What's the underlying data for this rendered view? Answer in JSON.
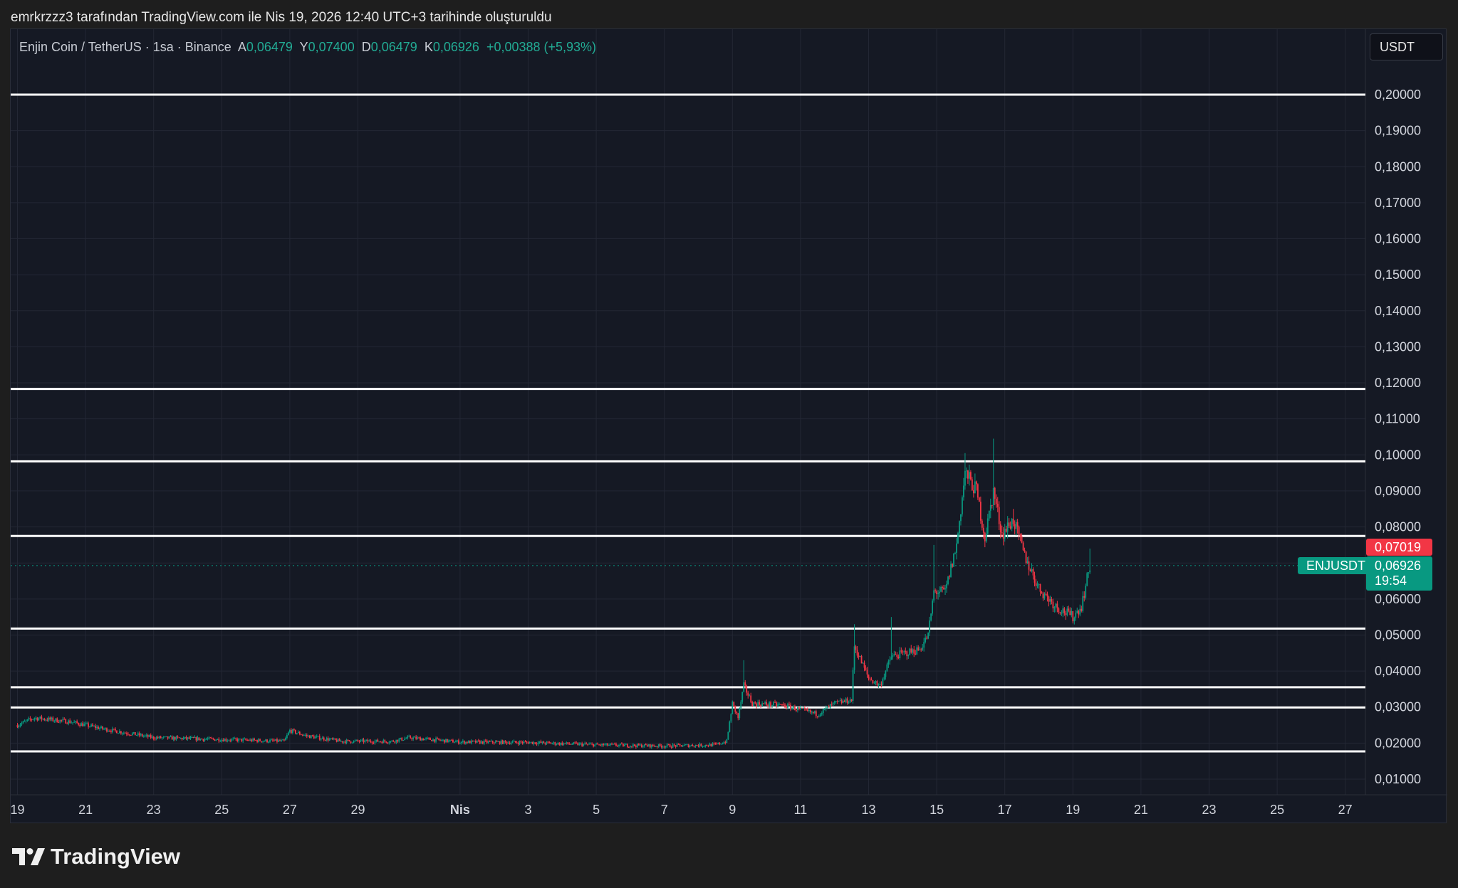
{
  "caption": "emrkrzzz3 tarafından TradingView.com ile Nis 19, 2026 12:40 UTC+3 tarihinde oluşturuldu",
  "legend": {
    "symbol": "Enjin Coin / TetherUS · 1sa · Binance",
    "o_label": "A",
    "o": "0,06479",
    "h_label": "Y",
    "h": "0,07400",
    "l_label": "D",
    "l": "0,06479",
    "c_label": "K",
    "c": "0,06926",
    "change": "+0,00388 (+5,93%)"
  },
  "unit_button": "USDT",
  "logo_text": "TradingView",
  "price_labels": {
    "symbol": "ENJUSDT",
    "prev": "0,07019",
    "last": "0,06926",
    "countdown": "19:54"
  },
  "colors": {
    "up": "#089981",
    "down": "#f23645",
    "background": "#151924",
    "grid": "#232734",
    "lines": "#ffffff"
  },
  "chart_data": {
    "type": "candlestick",
    "interval": "1h",
    "ylim": [
      0.005,
      0.215
    ],
    "y_ticks": [
      "0,01000",
      "0,02000",
      "0,03000",
      "0,04000",
      "0,05000",
      "0,06000",
      "0,07000",
      "0,08000",
      "0,09000",
      "0,10000",
      "0,11000",
      "0,12000",
      "0,13000",
      "0,14000",
      "0,15000",
      "0,16000",
      "0,17000",
      "0,18000",
      "0,19000",
      "0,20000"
    ],
    "x_ticks": [
      {
        "date": "2026-03-19",
        "label": "19"
      },
      {
        "date": "2026-03-21",
        "label": "21"
      },
      {
        "date": "2026-03-23",
        "label": "23"
      },
      {
        "date": "2026-03-25",
        "label": "25"
      },
      {
        "date": "2026-03-27",
        "label": "27"
      },
      {
        "date": "2026-03-29",
        "label": "29"
      },
      {
        "date": "2026-04-01",
        "label": "Nis"
      },
      {
        "date": "2026-04-03",
        "label": "3"
      },
      {
        "date": "2026-04-05",
        "label": "5"
      },
      {
        "date": "2026-04-07",
        "label": "7"
      },
      {
        "date": "2026-04-09",
        "label": "9"
      },
      {
        "date": "2026-04-11",
        "label": "11"
      },
      {
        "date": "2026-04-13",
        "label": "13"
      },
      {
        "date": "2026-04-15",
        "label": "15"
      },
      {
        "date": "2026-04-17",
        "label": "17"
      },
      {
        "date": "2026-04-19",
        "label": "19"
      },
      {
        "date": "2026-04-21",
        "label": "21"
      },
      {
        "date": "2026-04-23",
        "label": "23"
      },
      {
        "date": "2026-04-25",
        "label": "25"
      },
      {
        "date": "2026-04-27",
        "label": "27"
      }
    ],
    "x_range": [
      "2026-03-19",
      "2026-04-28"
    ],
    "grid": true,
    "horizontal_lines": [
      0.2,
      0.1183,
      0.0982,
      0.0775,
      0.0518,
      0.0355,
      0.0299,
      0.0177
    ],
    "last_price": 0.06926,
    "approx_close_path": [
      [
        "2026-03-19T00:00",
        0.025
      ],
      [
        "2026-03-19T12:00",
        0.027
      ],
      [
        "2026-03-20T12:00",
        0.026
      ],
      [
        "2026-03-21T12:00",
        0.024
      ],
      [
        "2026-03-23T00:00",
        0.0215
      ],
      [
        "2026-03-25T00:00",
        0.021
      ],
      [
        "2026-03-26T20:00",
        0.0205
      ],
      [
        "2026-03-27T00:00",
        0.0235
      ],
      [
        "2026-03-27T12:00",
        0.022
      ],
      [
        "2026-03-28T12:00",
        0.0205
      ],
      [
        "2026-03-30T00:00",
        0.0205
      ],
      [
        "2026-03-30T12:00",
        0.0215
      ],
      [
        "2026-04-01T00:00",
        0.0203
      ],
      [
        "2026-04-03T00:00",
        0.0202
      ],
      [
        "2026-04-05T00:00",
        0.0195
      ],
      [
        "2026-04-07T00:00",
        0.0192
      ],
      [
        "2026-04-08T12:00",
        0.0195
      ],
      [
        "2026-04-08T20:00",
        0.0205
      ],
      [
        "2026-04-09T00:00",
        0.031
      ],
      [
        "2026-04-09T04:00",
        0.027
      ],
      [
        "2026-04-09T08:00",
        0.036
      ],
      [
        "2026-04-09T14:00",
        0.031
      ],
      [
        "2026-04-10T12:00",
        0.0305
      ],
      [
        "2026-04-11T12:00",
        0.028
      ],
      [
        "2026-04-12T00:00",
        0.031
      ],
      [
        "2026-04-12T12:00",
        0.032
      ],
      [
        "2026-04-12T14:00",
        0.047
      ],
      [
        "2026-04-13T00:00",
        0.038
      ],
      [
        "2026-04-13T08:00",
        0.036
      ],
      [
        "2026-04-13T16:00",
        0.044
      ],
      [
        "2026-04-14T12:00",
        0.046
      ],
      [
        "2026-04-14T18:00",
        0.05
      ],
      [
        "2026-04-14T22:00",
        0.062
      ],
      [
        "2026-04-15T06:00",
        0.062
      ],
      [
        "2026-04-15T14:00",
        0.075
      ],
      [
        "2026-04-15T20:00",
        0.095
      ],
      [
        "2026-04-16T04:00",
        0.09
      ],
      [
        "2026-04-16T10:00",
        0.077
      ],
      [
        "2026-04-16T16:00",
        0.09
      ],
      [
        "2026-04-16T22:00",
        0.078
      ],
      [
        "2026-04-17T06:00",
        0.082
      ],
      [
        "2026-04-17T14:00",
        0.072
      ],
      [
        "2026-04-18T00:00",
        0.063
      ],
      [
        "2026-04-18T12:00",
        0.058
      ],
      [
        "2026-04-19T00:00",
        0.055
      ],
      [
        "2026-04-19T06:00",
        0.058
      ],
      [
        "2026-04-19T12:00",
        0.0693
      ]
    ],
    "spikes": [
      [
        "2026-04-09T08:00",
        0.043
      ],
      [
        "2026-04-12T14:00",
        0.053
      ],
      [
        "2026-04-13T16:00",
        0.055
      ],
      [
        "2026-04-14T22:00",
        0.075
      ],
      [
        "2026-04-15T20:00",
        0.1005
      ],
      [
        "2026-04-16T16:00",
        0.1045
      ],
      [
        "2026-04-17T06:00",
        0.085
      ],
      [
        "2026-04-19T12:00",
        0.074
      ]
    ]
  }
}
